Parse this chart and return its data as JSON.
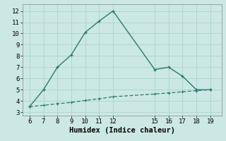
{
  "line1_x": [
    6,
    7,
    8,
    9,
    10,
    11,
    12,
    15,
    16,
    17,
    18,
    19
  ],
  "line1_y": [
    3.5,
    5.0,
    7.0,
    8.1,
    10.1,
    11.1,
    12.0,
    6.8,
    7.0,
    6.2,
    5.0,
    5.0
  ],
  "line2_x": [
    6,
    7,
    8,
    9,
    10,
    11,
    12,
    15,
    16,
    17,
    18,
    19
  ],
  "line2_y": [
    3.5,
    3.62,
    3.75,
    3.88,
    4.05,
    4.2,
    4.38,
    4.62,
    4.72,
    4.82,
    4.92,
    5.0
  ],
  "line_color": "#2a7a6a",
  "bg_color": "#cce8e4",
  "grid_color": "#b0d8d4",
  "xlabel": "Humidex (Indice chaleur)",
  "xticks": [
    6,
    7,
    8,
    9,
    10,
    11,
    12,
    15,
    16,
    17,
    18,
    19
  ],
  "yticks": [
    3,
    4,
    5,
    6,
    7,
    8,
    9,
    10,
    11,
    12
  ],
  "xlim": [
    5.5,
    19.8
  ],
  "ylim": [
    2.7,
    12.6
  ],
  "xlabel_fontsize": 7.5,
  "tick_fontsize": 6.5,
  "linewidth1": 1.0,
  "linewidth2": 0.9,
  "markersize": 3.5
}
